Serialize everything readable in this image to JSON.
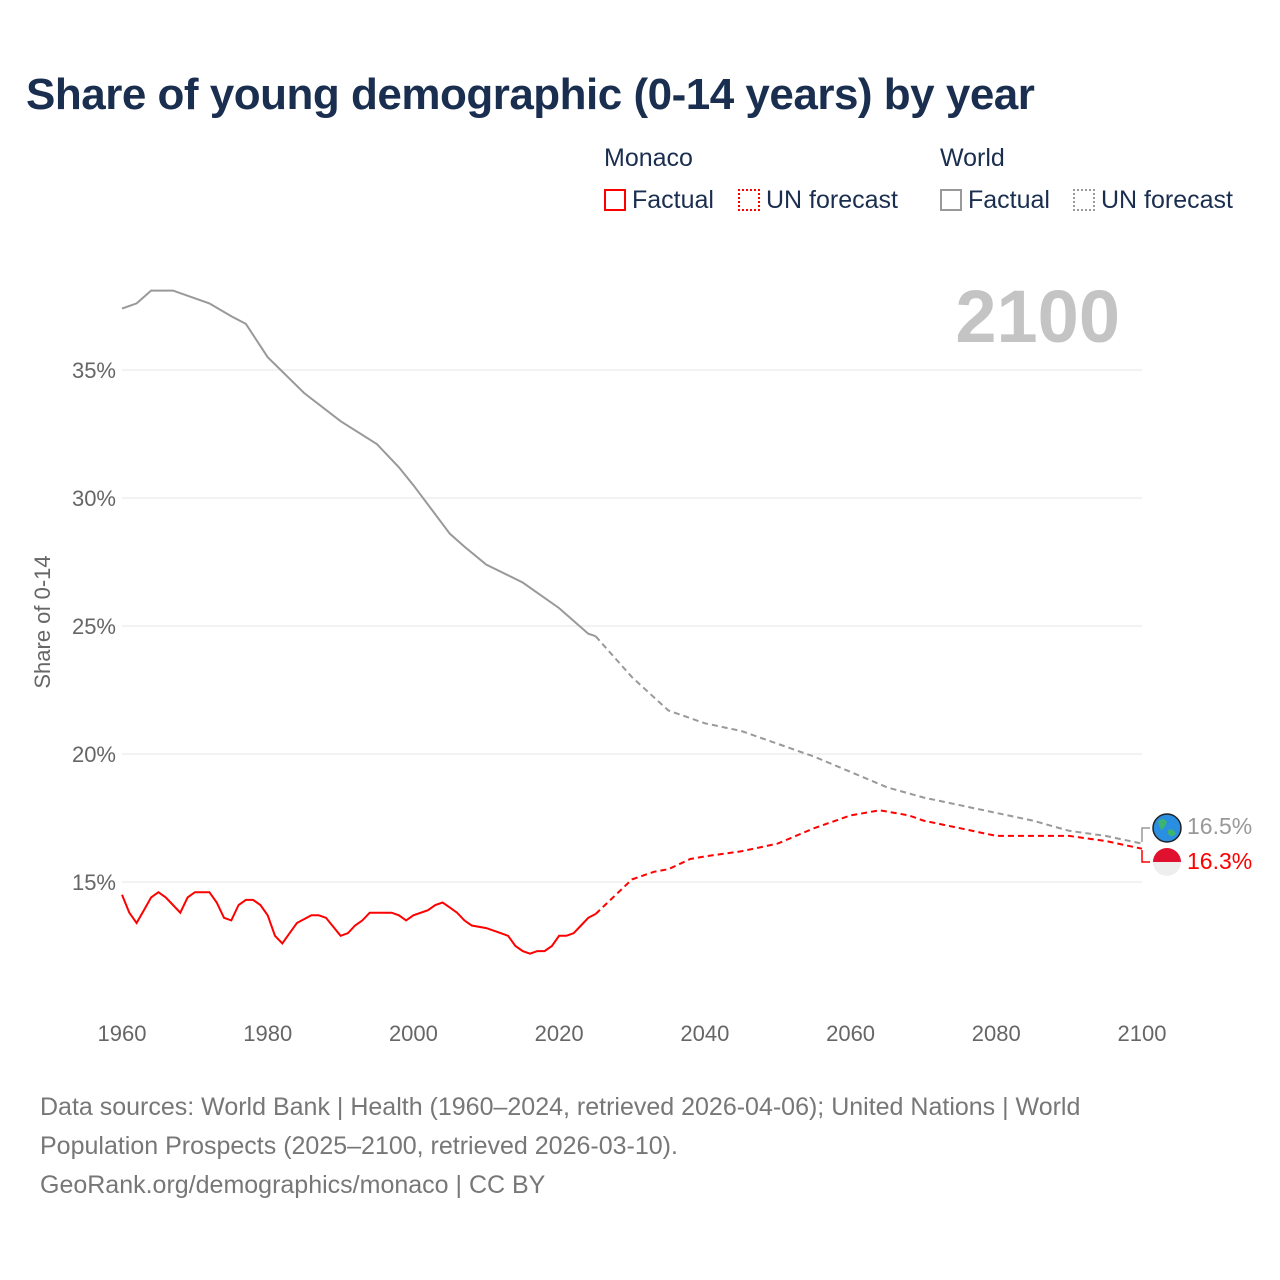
{
  "chart_data": {
    "type": "line",
    "title": "Share of young demographic (0-14 years) by year",
    "ylabel": "Share of 0-14",
    "xlim": [
      1960,
      2100
    ],
    "ylim": [
      10,
      38
    ],
    "xticks": [
      1960,
      1980,
      2000,
      2020,
      2040,
      2060,
      2080,
      2100
    ],
    "xtick_labels": [
      "1960",
      "1980",
      "2000",
      "2020",
      "2040",
      "2060",
      "2080",
      "2100"
    ],
    "yticks": [
      15,
      20,
      25,
      30,
      35
    ],
    "ytick_labels": [
      "15%",
      "20%",
      "25%",
      "30%",
      "35%"
    ],
    "year_label": "2100",
    "legend": {
      "groups": [
        {
          "name": "Monaco",
          "items": [
            "Factual",
            "UN forecast"
          ]
        },
        {
          "name": "World",
          "items": [
            "Factual",
            "UN forecast"
          ]
        }
      ]
    },
    "series": [
      {
        "name": "Monaco Factual",
        "color": "#ff0000",
        "dashed": false,
        "x": [
          1960,
          1961,
          1962,
          1963,
          1964,
          1965,
          1966,
          1967,
          1968,
          1969,
          1970,
          1972,
          1973,
          1974,
          1975,
          1976,
          1977,
          1978,
          1979,
          1980,
          1981,
          1982,
          1983,
          1984,
          1986,
          1987,
          1988,
          1990,
          1991,
          1992,
          1993,
          1994,
          1995,
          1997,
          1998,
          1999,
          2000,
          2002,
          2003,
          2004,
          2005,
          2006,
          2007,
          2008,
          2010,
          2012,
          2013,
          2014,
          2015,
          2016,
          2017,
          2018,
          2019,
          2020,
          2021,
          2022,
          2023,
          2024,
          2025
        ],
        "y": [
          14.5,
          13.8,
          13.4,
          13.9,
          14.4,
          14.6,
          14.4,
          14.1,
          13.8,
          14.4,
          14.6,
          14.6,
          14.2,
          13.6,
          13.5,
          14.1,
          14.3,
          14.3,
          14.1,
          13.7,
          12.9,
          12.6,
          13.0,
          13.4,
          13.7,
          13.7,
          13.6,
          12.9,
          13.0,
          13.3,
          13.5,
          13.8,
          13.8,
          13.8,
          13.7,
          13.5,
          13.7,
          13.9,
          14.1,
          14.2,
          14.0,
          13.8,
          13.5,
          13.3,
          13.2,
          13.0,
          12.9,
          12.5,
          12.3,
          12.2,
          12.3,
          12.3,
          12.5,
          12.9,
          12.9,
          13.0,
          13.3,
          13.6,
          13.75
        ]
      },
      {
        "name": "Monaco UN forecast",
        "color": "#ff0000",
        "dashed": true,
        "x": [
          2025,
          2030,
          2033,
          2035,
          2038,
          2040,
          2045,
          2050,
          2055,
          2060,
          2064,
          2068,
          2070,
          2075,
          2080,
          2085,
          2090,
          2095,
          2100
        ],
        "y": [
          13.75,
          15.1,
          15.4,
          15.5,
          15.9,
          16.0,
          16.2,
          16.5,
          17.1,
          17.6,
          17.8,
          17.6,
          17.4,
          17.1,
          16.8,
          16.8,
          16.8,
          16.6,
          16.3
        ]
      },
      {
        "name": "World Factual",
        "color": "#999999",
        "dashed": false,
        "x": [
          1960,
          1962,
          1964,
          1967,
          1972,
          1975,
          1977,
          1980,
          1985,
          1990,
          1995,
          1998,
          2000,
          2005,
          2007,
          2010,
          2015,
          2020,
          2024,
          2025
        ],
        "y": [
          37.4,
          37.6,
          38.1,
          38.1,
          37.6,
          37.1,
          36.8,
          35.5,
          34.1,
          33.0,
          32.1,
          31.2,
          30.5,
          28.6,
          28.1,
          27.4,
          26.7,
          25.7,
          24.7,
          24.6
        ]
      },
      {
        "name": "World UN forecast",
        "color": "#999999",
        "dashed": true,
        "x": [
          2025,
          2030,
          2035,
          2040,
          2045,
          2050,
          2055,
          2060,
          2065,
          2070,
          2075,
          2080,
          2085,
          2090,
          2095,
          2100
        ],
        "y": [
          24.6,
          23.0,
          21.7,
          21.2,
          20.9,
          20.4,
          19.9,
          19.3,
          18.7,
          18.3,
          18.0,
          17.7,
          17.4,
          17.0,
          16.8,
          16.5
        ]
      }
    ],
    "end_labels": {
      "world": "16.5%",
      "monaco": "16.3%"
    }
  },
  "legend": {
    "monaco": "Monaco",
    "world": "World",
    "factual": "Factual",
    "forecast": "UN forecast"
  },
  "footer": {
    "line1": "Data sources: World Bank | Health (1960–2024, retrieved 2026-04-06); United Nations | World Population Prospects (2025–2100, retrieved 2026-03-10).",
    "line2": "GeoRank.org/demographics/monaco | CC BY"
  }
}
